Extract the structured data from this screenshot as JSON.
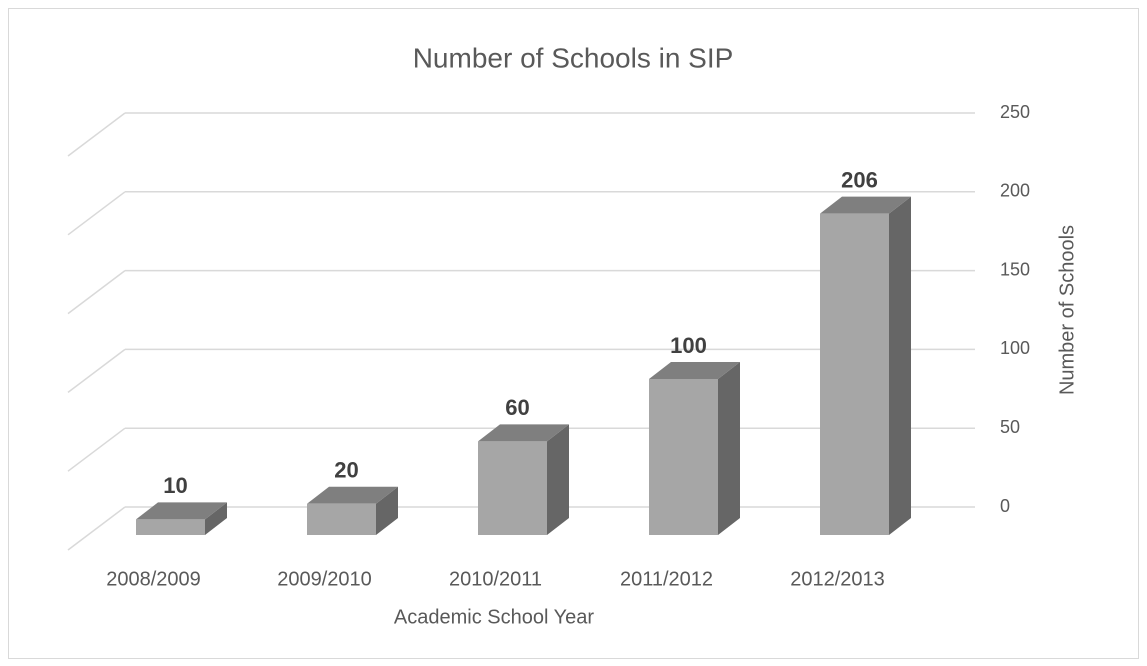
{
  "chart_data": {
    "type": "bar",
    "title": "Number of Schools in SIP",
    "x_label": "Academic School Year",
    "y_label": "Number of Schools",
    "categories": [
      "2008/2009",
      "2009/2010",
      "2010/2011",
      "2011/2012",
      "2012/2013"
    ],
    "values": [
      10,
      20,
      60,
      100,
      206
    ],
    "color": "#a6a6a6",
    "ylim": [
      0,
      250
    ],
    "yticks": [
      0,
      50,
      100,
      150,
      200,
      250
    ],
    "grid": true
  }
}
